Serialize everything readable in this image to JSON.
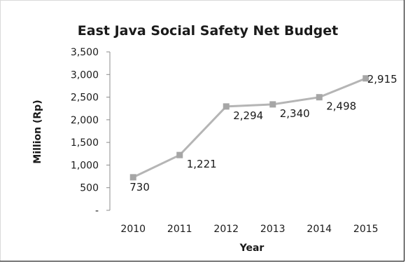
{
  "chart_data": {
    "type": "line",
    "title": "East Java Social Safety Net Budget",
    "xlabel": "Year",
    "ylabel": "Million (Rp)",
    "categories": [
      "2010",
      "2011",
      "2012",
      "2013",
      "2014",
      "2015"
    ],
    "series": [
      {
        "values": [
          730,
          1221,
          2294,
          2340,
          2498,
          2915
        ]
      }
    ],
    "data_labels": [
      "730",
      "1,221",
      "2,294",
      "2,340",
      "2,498",
      "2,915"
    ],
    "y_ticks": [
      {
        "value": 0,
        "label": "-"
      },
      {
        "value": 500,
        "label": "500"
      },
      {
        "value": 1000,
        "label": "1,000"
      },
      {
        "value": 1500,
        "label": "1,500"
      },
      {
        "value": 2000,
        "label": "2,000"
      },
      {
        "value": 2500,
        "label": "2,500"
      },
      {
        "value": 3000,
        "label": "3,000"
      },
      {
        "value": 3500,
        "label": "3,500"
      }
    ],
    "ylim": [
      0,
      3500
    ],
    "grid": false,
    "legend": "none",
    "line_color": "#b5b5b5",
    "marker_color": "#a6a6a6",
    "marker": "square"
  }
}
